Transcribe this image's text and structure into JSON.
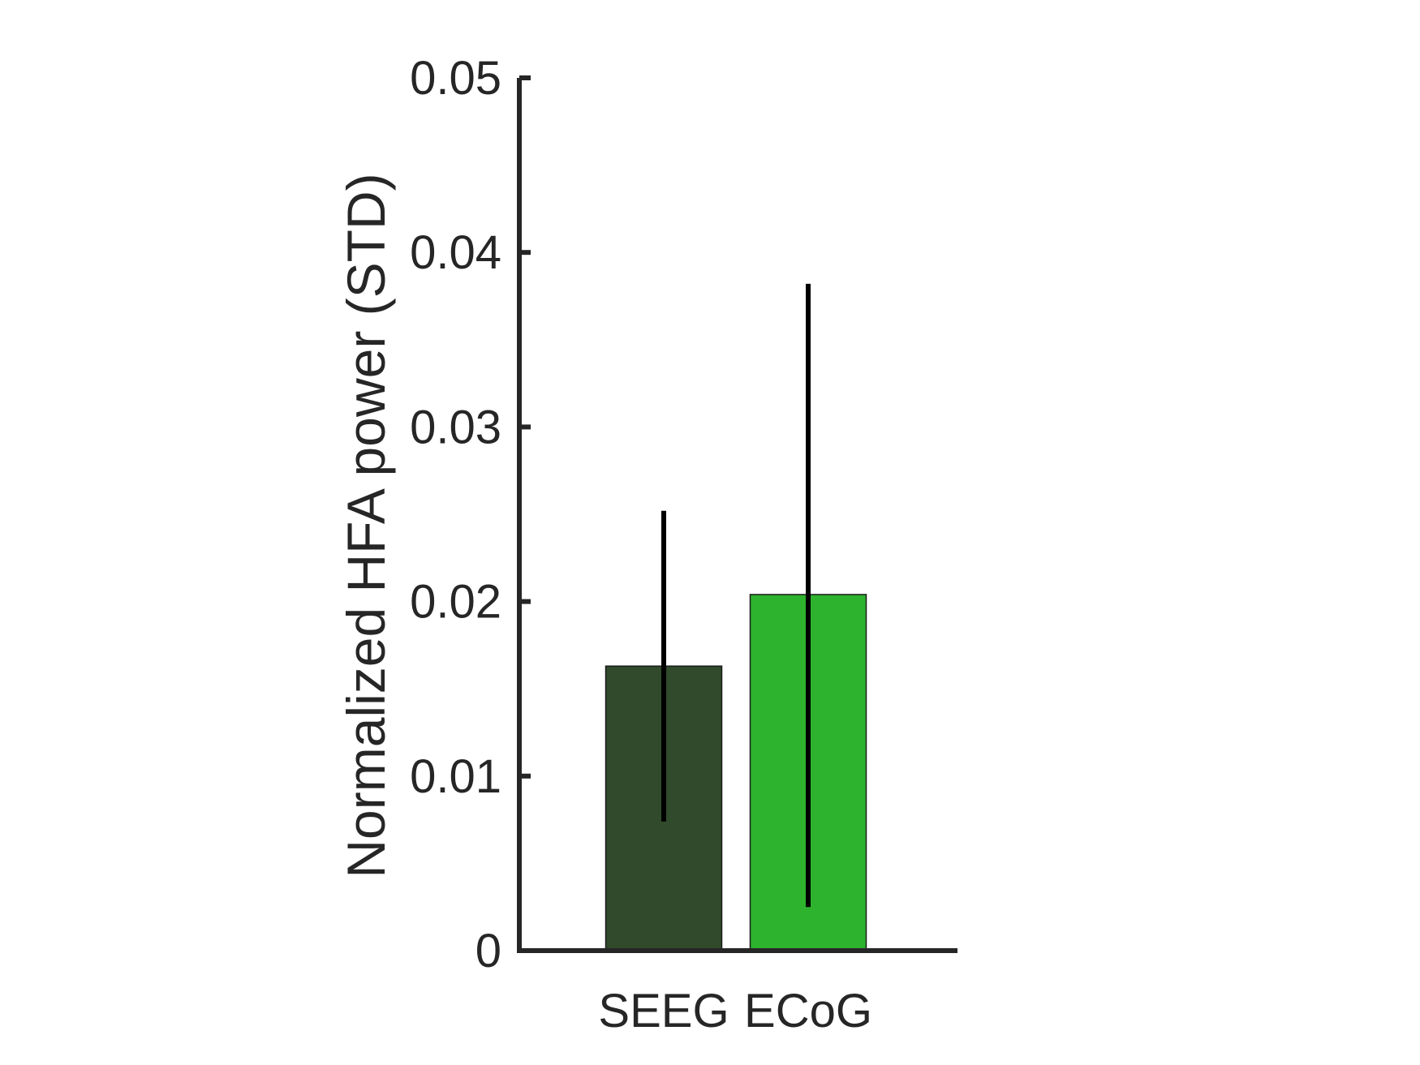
{
  "chart_data": {
    "type": "bar",
    "title": "",
    "xlabel": "",
    "ylabel": "Normalized HFA power (STD)",
    "categories": [
      "SEEG",
      "ECoG"
    ],
    "values": [
      0.0163,
      0.0204
    ],
    "error_low": [
      0.0074,
      0.0025
    ],
    "error_high": [
      0.0252,
      0.0382
    ],
    "bar_colors": [
      "#304a2b",
      "#2db32d"
    ],
    "ylim": [
      0,
      0.05
    ],
    "yticks": [
      0,
      0.01,
      0.02,
      0.03,
      0.04,
      0.05
    ],
    "ytick_labels": [
      "0",
      "0.01",
      "0.02",
      "0.03",
      "0.04",
      "0.05"
    ],
    "grid": false,
    "legend": "none"
  }
}
